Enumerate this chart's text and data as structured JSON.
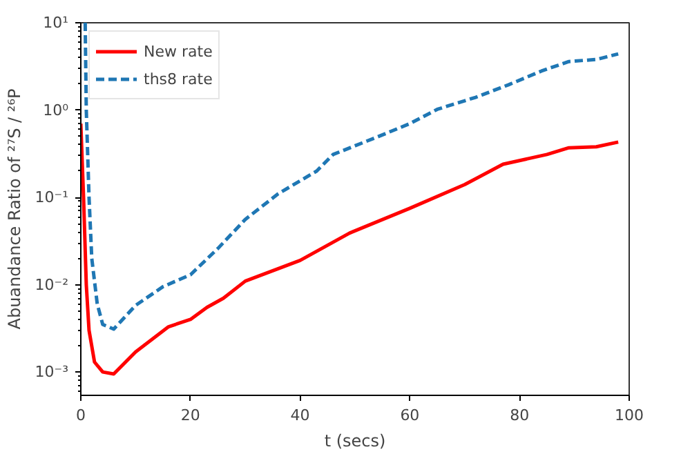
{
  "chart_data": {
    "type": "line",
    "xlabel": "t (secs)",
    "ylabel": "Abuandance Ratio of ²⁷S / ²⁶P",
    "log": "y",
    "legend": "top left",
    "grid": false,
    "xlim": [
      0,
      100
    ],
    "xticks": [
      0,
      20,
      40,
      60,
      80,
      100
    ],
    "ylim": [
      0.00054,
      10
    ],
    "yticks": [
      {
        "value": 0.001,
        "label": "10⁻³"
      },
      {
        "value": 0.01,
        "label": "10⁻²"
      },
      {
        "value": 0.1,
        "label": "10⁻¹"
      },
      {
        "value": 1,
        "label": "10⁰"
      },
      {
        "value": 10,
        "label": "10¹"
      }
    ],
    "series": [
      {
        "name": "New rate",
        "color": "#ff0000",
        "line_style": "solid",
        "x": [
          0,
          0.5,
          1,
          1.5,
          2.5,
          4,
          6,
          10,
          16,
          20,
          23,
          26,
          30,
          40,
          49,
          60,
          70,
          77,
          85,
          89,
          94,
          98
        ],
        "values": [
          0.7,
          0.1,
          0.01,
          0.003,
          0.0013,
          0.001,
          0.00095,
          0.0017,
          0.0033,
          0.004,
          0.0055,
          0.007,
          0.011,
          0.019,
          0.039,
          0.075,
          0.14,
          0.24,
          0.31,
          0.37,
          0.38,
          0.43
        ]
      },
      {
        "name": "ths8 rate",
        "color": "#1f77b4",
        "line_style": "dashed",
        "x": [
          0.8,
          1,
          1.5,
          2,
          3,
          4,
          6,
          10,
          15,
          20,
          25,
          30,
          36,
          43,
          46,
          54,
          60,
          65,
          72,
          78,
          84,
          89,
          94,
          98
        ],
        "values": [
          10,
          1,
          0.1,
          0.02,
          0.006,
          0.0035,
          0.0031,
          0.0058,
          0.0095,
          0.013,
          0.026,
          0.056,
          0.11,
          0.2,
          0.31,
          0.49,
          0.7,
          1.02,
          1.4,
          1.95,
          2.8,
          3.6,
          3.8,
          4.4
        ]
      }
    ]
  }
}
